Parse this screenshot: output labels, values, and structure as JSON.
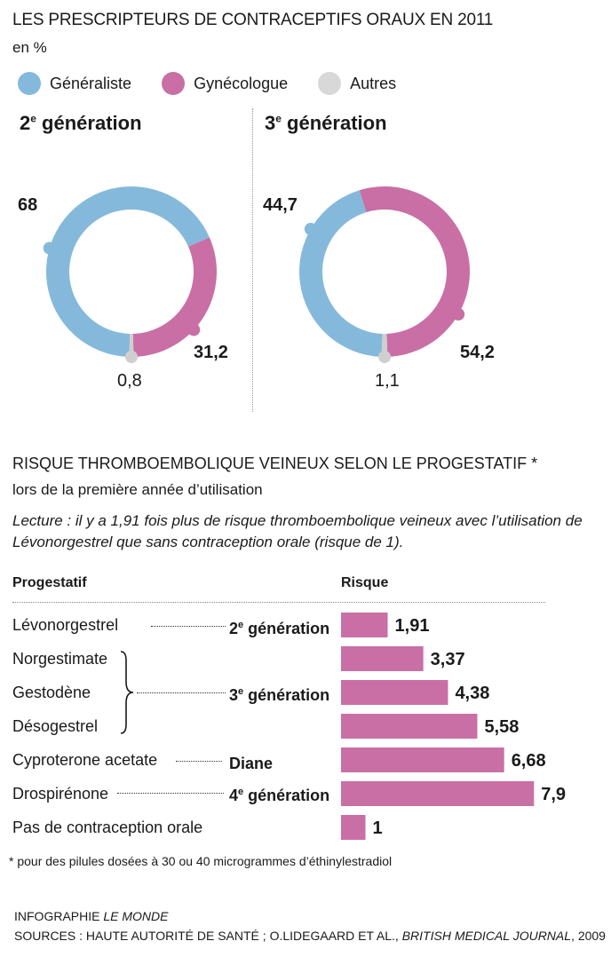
{
  "title": "LES PRESCRIPTEURS DE CONTRACEPTIFS ORAUX EN 2011",
  "unit": "en %",
  "legend": [
    {
      "label": "Généraliste",
      "color": "#84b9dc"
    },
    {
      "label": "Gynécologue",
      "color": "#c96fa5"
    },
    {
      "label": "Autres",
      "color": "#cfcfcf"
    }
  ],
  "donuts": [
    {
      "gen_num": "2",
      "gen_sup": "e",
      "gen_word": " génération",
      "labels": {
        "generaliste": "68",
        "gynecologue": "31,2",
        "autres": "0,8"
      }
    },
    {
      "gen_num": "3",
      "gen_sup": "e",
      "gen_word": " génération",
      "labels": {
        "generaliste": "44,7",
        "gynecologue": "54,2",
        "autres": "1,1"
      }
    }
  ],
  "risk_section": {
    "title": "RISQUE THROMBOEMBOLIQUE VEINEUX SELON LE PROGESTATIF *",
    "subtitle": "lors de la première année d’utilisation",
    "reading": "Lecture : il y a 1,91 fois plus de risque thromboembolique veineux avec l’utilisation de Lévonorgestrel que sans contraception orale (risque de 1).",
    "col_progestatif": "Progestatif",
    "col_risque": "Risque",
    "groups": [
      {
        "num": "2",
        "sup": "e",
        "word": " génération"
      },
      {
        "num": "3",
        "sup": "e",
        "word": " génération"
      },
      {
        "num": "",
        "sup": "",
        "word": "Diane"
      },
      {
        "num": "4",
        "sup": "e",
        "word": " génération"
      }
    ],
    "bar_color": "#c96fa5"
  },
  "chart_data": [
    {
      "type": "pie",
      "title": "2e génération",
      "categories": [
        "Généraliste",
        "Gynécologue",
        "Autres"
      ],
      "values": [
        68,
        31.2,
        0.8
      ],
      "colors": [
        "#84b9dc",
        "#c96fa5",
        "#cfcfcf"
      ]
    },
    {
      "type": "pie",
      "title": "3e génération",
      "categories": [
        "Généraliste",
        "Gynécologue",
        "Autres"
      ],
      "values": [
        44.7,
        54.2,
        1.1
      ],
      "colors": [
        "#84b9dc",
        "#c96fa5",
        "#cfcfcf"
      ]
    },
    {
      "type": "bar",
      "orientation": "horizontal",
      "categories": [
        "Lévonorgestrel",
        "Norgestimate",
        "Gestodène",
        "Désogestrel",
        "Cyproterone acetate",
        "Drospirénone",
        "Pas de contraception orale"
      ],
      "values": [
        1.91,
        3.37,
        4.38,
        5.58,
        6.68,
        7.9,
        1
      ],
      "value_labels": [
        "1,91",
        "3,37",
        "4,38",
        "5,58",
        "6,68",
        "7,9",
        "1"
      ],
      "xlabel": "Risque",
      "ylabel": "Progestatif"
    }
  ],
  "footnote": "* pour des pilules dosées à 30 ou 40 microgrammes d’éthinylestradiol",
  "credit": {
    "prefix": "INFOGRAPHIE ",
    "name": "LE MONDE"
  },
  "sources": {
    "prefix": "SOURCES :  HAUTE AUTORITÉ DE SANTÉ ; O.LIDEGAARD ET AL., ",
    "journal": "BRITISH MEDICAL JOURNAL",
    "suffix": ", 2009"
  }
}
